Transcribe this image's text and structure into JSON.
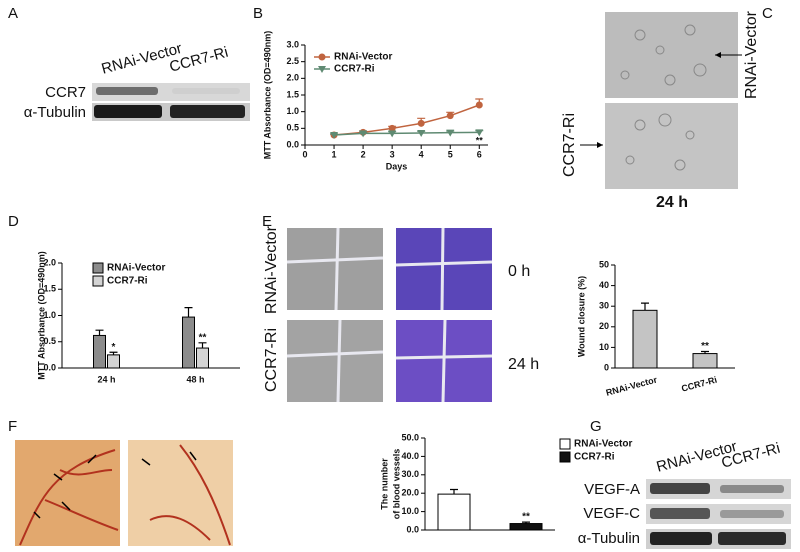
{
  "panel_labels": [
    "A",
    "B",
    "C",
    "D",
    "E",
    "F",
    "G"
  ],
  "blot_a": {
    "columns": [
      "RNAi-Vector",
      "CCR7-Ri"
    ],
    "rows": [
      "CCR7",
      "α-Tubulin"
    ]
  },
  "images_c": {
    "rows": [
      "RNAi-Vector",
      "CCR7-Ri"
    ],
    "time": "24 h"
  },
  "images_e": {
    "rows": [
      "RNAi-Vector",
      "CCR7-Ri"
    ],
    "times": [
      "0 h",
      "24 h"
    ]
  },
  "blot_g": {
    "columns": [
      "RNAi-Vector",
      "CCR7-Ri"
    ],
    "rows": [
      "VEGF-A",
      "VEGF-C",
      "α-Tubulin"
    ]
  },
  "chart_data": [
    {
      "type": "line",
      "xlabel": "Days",
      "ylabel": "MTT Absorbance (OD=490nm)",
      "x": [
        1,
        2,
        3,
        4,
        5,
        6
      ],
      "xlim": [
        0,
        6.3
      ],
      "xticks": [
        0,
        1,
        2,
        3,
        4,
        5,
        6
      ],
      "ylim": [
        0,
        3
      ],
      "yticks": [
        {
          "value": 0,
          "label": "0.0"
        },
        0.5,
        {
          "value": 1,
          "label": "1.0"
        },
        1.5,
        {
          "value": 2,
          "label": "2.0"
        },
        2.5,
        {
          "value": 3,
          "label": "3.0"
        }
      ],
      "series": [
        {
          "name": "RNAi-Vector",
          "color": "#c0643f",
          "marker": "circle",
          "values": [
            0.3,
            0.38,
            0.5,
            0.65,
            0.88,
            1.2
          ],
          "errors": [
            0.03,
            0.04,
            0.06,
            0.15,
            0.1,
            0.18
          ]
        },
        {
          "name": "CCR7-Ri",
          "color": "#5f8a72",
          "marker": "triangle",
          "values": [
            0.3,
            0.35,
            0.35,
            0.36,
            0.37,
            0.38
          ],
          "errors": [
            0.03,
            0.03,
            0.05,
            0.05,
            0.05,
            0.05
          ],
          "significance": [
            null,
            null,
            null,
            null,
            null,
            "**"
          ]
        }
      ]
    },
    {
      "type": "bar",
      "ylabel": "MTT Absorbance (OD=490nm)",
      "categories": [
        "24 h",
        "48 h"
      ],
      "ylim": [
        0,
        2
      ],
      "yticks": [
        {
          "value": 0,
          "label": "0.0"
        },
        0.5,
        {
          "value": 1,
          "label": "1.0"
        },
        1.5,
        {
          "value": 2,
          "label": "2.0"
        }
      ],
      "series": [
        {
          "name": "RNAi-Vector",
          "color": "#8c8c8c",
          "values": [
            0.62,
            0.97
          ],
          "errors": [
            0.1,
            0.18
          ]
        },
        {
          "name": "CCR7-Ri",
          "color": "#d4d4d4",
          "values": [
            0.25,
            0.38
          ],
          "errors": [
            0.05,
            0.1
          ],
          "significance": [
            "*",
            "**"
          ]
        }
      ]
    },
    {
      "type": "bar",
      "ylabel": "Wound closure (%)",
      "categories": [
        "RNAi-Vector",
        "CCR7-Ri"
      ],
      "values": [
        28,
        7
      ],
      "errors": [
        3.5,
        1
      ],
      "significance": [
        null,
        "**"
      ],
      "color": "#c4c4c4",
      "ylim": [
        0,
        50
      ],
      "yticks": [
        0,
        10,
        20,
        30,
        40,
        50
      ]
    },
    {
      "type": "bar",
      "ylabel": [
        "The number",
        "of blood vessels"
      ],
      "categories": [
        null
      ],
      "ylim": [
        0,
        50
      ],
      "yticks": [
        {
          "value": 0,
          "label": "0.0"
        },
        {
          "value": 10,
          "label": "10.0"
        },
        {
          "value": 20,
          "label": "20.0"
        },
        {
          "value": 30,
          "label": "30.0"
        },
        {
          "value": 40,
          "label": "40.0"
        },
        {
          "value": 50,
          "label": "50.0"
        }
      ],
      "series": [
        {
          "name": "RNAi-Vector",
          "color": "#ffffff",
          "values": [
            19.5
          ],
          "errors": [
            2.5
          ]
        },
        {
          "name": "CCR7-Ri",
          "color": "#111111",
          "values": [
            3.5
          ],
          "errors": [
            0.8
          ],
          "significance": [
            "**"
          ]
        }
      ]
    }
  ]
}
